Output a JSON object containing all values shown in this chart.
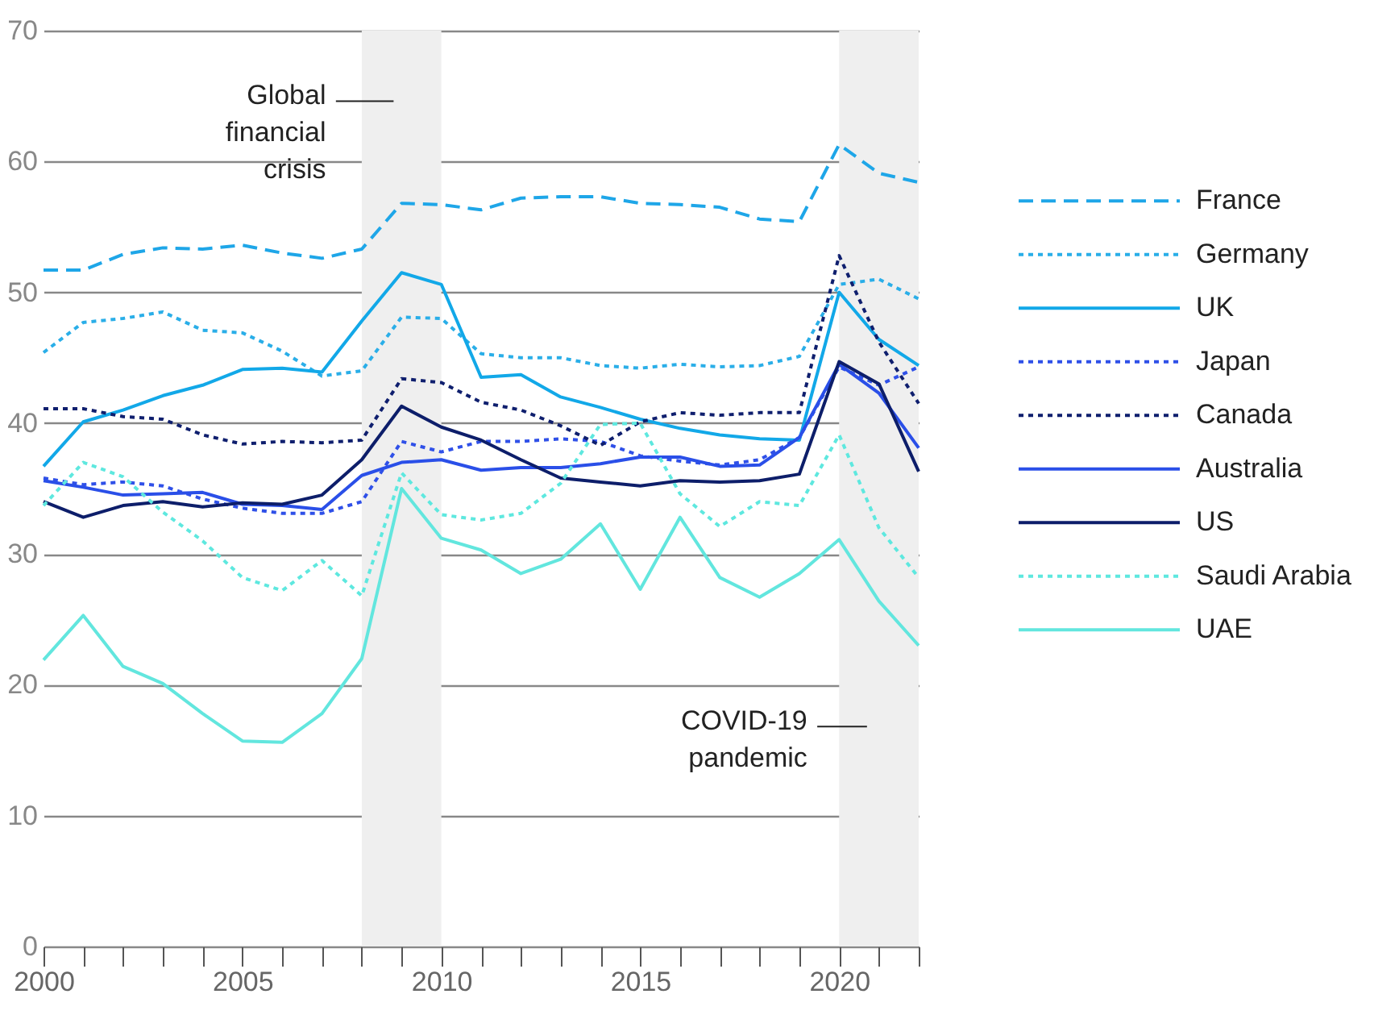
{
  "chart_data": {
    "type": "line",
    "x": [
      2000,
      2001,
      2002,
      2003,
      2004,
      2005,
      2006,
      2007,
      2008,
      2009,
      2010,
      2011,
      2012,
      2013,
      2014,
      2015,
      2016,
      2017,
      2018,
      2019,
      2020,
      2021,
      2022
    ],
    "xlim": [
      2000,
      2022
    ],
    "xticks": [
      2000,
      {
        "value": 2001,
        "label": null
      },
      {
        "value": 2002,
        "label": null
      },
      {
        "value": 2003,
        "label": null
      },
      {
        "value": 2004,
        "label": null
      },
      2005,
      {
        "value": 2006,
        "label": null
      },
      {
        "value": 2007,
        "label": null
      },
      {
        "value": 2008,
        "label": null
      },
      {
        "value": 2009,
        "label": null
      },
      2010,
      {
        "value": 2011,
        "label": null
      },
      {
        "value": 2012,
        "label": null
      },
      {
        "value": 2013,
        "label": null
      },
      {
        "value": 2014,
        "label": null
      },
      2015,
      {
        "value": 2016,
        "label": null
      },
      {
        "value": 2017,
        "label": null
      },
      {
        "value": 2018,
        "label": null
      },
      {
        "value": 2019,
        "label": null
      },
      2020,
      {
        "value": 2021,
        "label": null
      },
      {
        "value": 2022,
        "label": null
      }
    ],
    "ylim": [
      0,
      70
    ],
    "yticks": [
      0,
      10,
      20,
      30,
      40,
      50,
      60,
      70
    ],
    "grid": "y",
    "legend": "right",
    "marker": "none",
    "series": [
      {
        "name": "France",
        "color": "#1ea6e8",
        "line_style": "dashed",
        "values": [
          51.7,
          51.7,
          52.9,
          53.4,
          53.3,
          53.6,
          53.0,
          52.6,
          53.3,
          56.8,
          56.7,
          56.3,
          57.2,
          57.3,
          57.3,
          56.8,
          56.7,
          56.5,
          55.6,
          55.4,
          61.3,
          59.1,
          58.4
        ]
      },
      {
        "name": "Germany",
        "color": "#2aaee8",
        "line_style": "dotted",
        "values": [
          45.4,
          47.7,
          48.0,
          48.5,
          47.1,
          46.9,
          45.5,
          43.6,
          44.0,
          48.1,
          48.0,
          45.3,
          45.0,
          45.0,
          44.4,
          44.2,
          44.5,
          44.3,
          44.4,
          45.1,
          50.6,
          51.0,
          49.5
        ]
      },
      {
        "name": "UK",
        "color": "#12a8e8",
        "line_style": "solid",
        "values": [
          36.7,
          40.1,
          41.0,
          42.1,
          42.9,
          44.1,
          44.2,
          43.9,
          47.8,
          51.5,
          50.6,
          43.5,
          43.7,
          42.0,
          41.2,
          40.3,
          39.6,
          39.1,
          38.8,
          38.7,
          50.0,
          46.4,
          44.4
        ]
      },
      {
        "name": "Japan",
        "color": "#2f50e8",
        "line_style": "dotted",
        "values": [
          35.8,
          35.3,
          35.5,
          35.2,
          34.2,
          33.5,
          33.1,
          33.1,
          34.0,
          38.6,
          37.8,
          38.6,
          38.6,
          38.8,
          38.6,
          37.5,
          37.1,
          36.8,
          37.2,
          38.9,
          44.3,
          42.9,
          44.3
        ]
      },
      {
        "name": "Canada",
        "color": "#0f1f6e",
        "line_style": "dotted",
        "values": [
          41.1,
          41.1,
          40.5,
          40.3,
          39.1,
          38.4,
          38.6,
          38.5,
          38.7,
          43.4,
          43.1,
          41.6,
          41.0,
          39.8,
          38.3,
          40.1,
          40.8,
          40.6,
          40.8,
          40.8,
          52.8,
          46.2,
          41.5
        ]
      },
      {
        "name": "Australia",
        "color": "#2a4fe8",
        "line_style": "solid",
        "values": [
          35.6,
          35.1,
          34.5,
          34.6,
          34.7,
          33.8,
          33.7,
          33.4,
          36.0,
          37.0,
          37.2,
          36.4,
          36.6,
          36.6,
          36.9,
          37.4,
          37.4,
          36.7,
          36.8,
          38.9,
          44.5,
          42.3,
          38.1
        ]
      },
      {
        "name": "US",
        "color": "#0d1e6a",
        "line_style": "solid",
        "values": [
          34.0,
          32.8,
          33.7,
          34.0,
          33.6,
          33.9,
          33.8,
          34.5,
          37.2,
          41.3,
          39.7,
          38.7,
          37.2,
          35.8,
          35.5,
          35.2,
          35.6,
          35.5,
          35.6,
          36.1,
          44.7,
          43.0,
          36.3
        ]
      },
      {
        "name": "Saudi Arabia",
        "color": "#5ee8df",
        "line_style": "dotted",
        "values": [
          33.7,
          37.0,
          35.9,
          33.2,
          31.0,
          28.2,
          27.2,
          29.5,
          26.8,
          36.2,
          33.0,
          32.6,
          33.1,
          35.4,
          39.9,
          40.0,
          34.6,
          32.1,
          34.0,
          33.7,
          39.1,
          32.0,
          28.2
        ]
      },
      {
        "name": "UAE",
        "color": "#62e6de",
        "line_style": "solid",
        "values": [
          21.9,
          25.3,
          21.4,
          20.1,
          17.8,
          15.7,
          15.6,
          17.8,
          22.0,
          35.0,
          31.2,
          30.3,
          28.5,
          29.6,
          32.3,
          27.3,
          32.8,
          28.2,
          26.7,
          28.5,
          31.1,
          26.4,
          23.0
        ]
      }
    ],
    "bands": [
      {
        "axis": "x",
        "from": 2008,
        "to": 2010,
        "label": "Global financial crisis",
        "color": "#efefef"
      },
      {
        "axis": "x",
        "from": 2020,
        "to": 2022,
        "label": "COVID-19 pandemic",
        "color": "#efefef"
      }
    ]
  }
}
